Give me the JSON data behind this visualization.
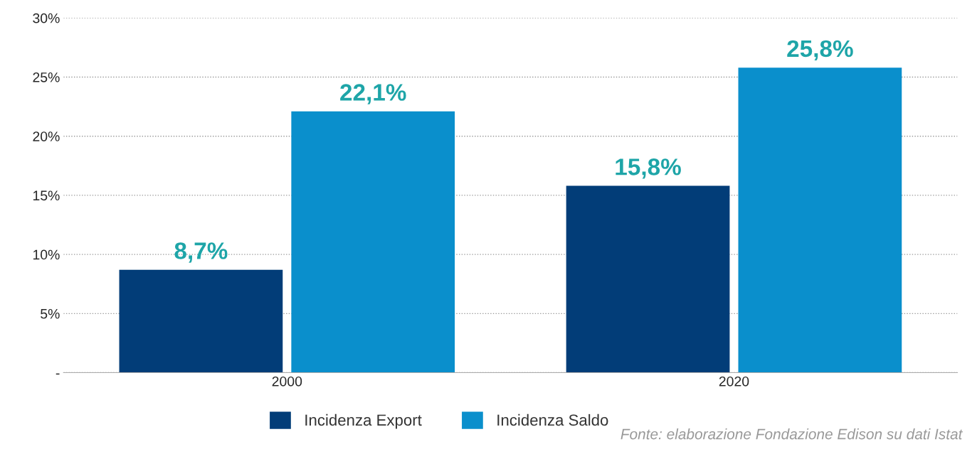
{
  "chart_data": {
    "type": "bar",
    "categories": [
      "2000",
      "2020"
    ],
    "series": [
      {
        "name": "Incidenza Export",
        "color": "#023d78",
        "values": [
          8.7,
          15.8
        ],
        "value_labels": [
          "8,7%",
          "15,8%"
        ]
      },
      {
        "name": "Incidenza Saldo",
        "color": "#0a8fcc",
        "values": [
          22.1,
          25.8
        ],
        "value_labels": [
          "22,1%",
          "25,8%"
        ]
      }
    ],
    "ylim": [
      0,
      30
    ],
    "yticks": [
      {
        "value": 0,
        "label": "-"
      },
      {
        "value": 5,
        "label": "5%"
      },
      {
        "value": 10,
        "label": "10%"
      },
      {
        "value": 15,
        "label": "15%"
      },
      {
        "value": 20,
        "label": "20%"
      },
      {
        "value": 25,
        "label": "25%"
      },
      {
        "value": 30,
        "label": "30%"
      }
    ],
    "grid": "y",
    "legend": "bottom",
    "annotations": [
      "Fonte: elaborazione Fondazione Edison su dati Istat"
    ]
  }
}
